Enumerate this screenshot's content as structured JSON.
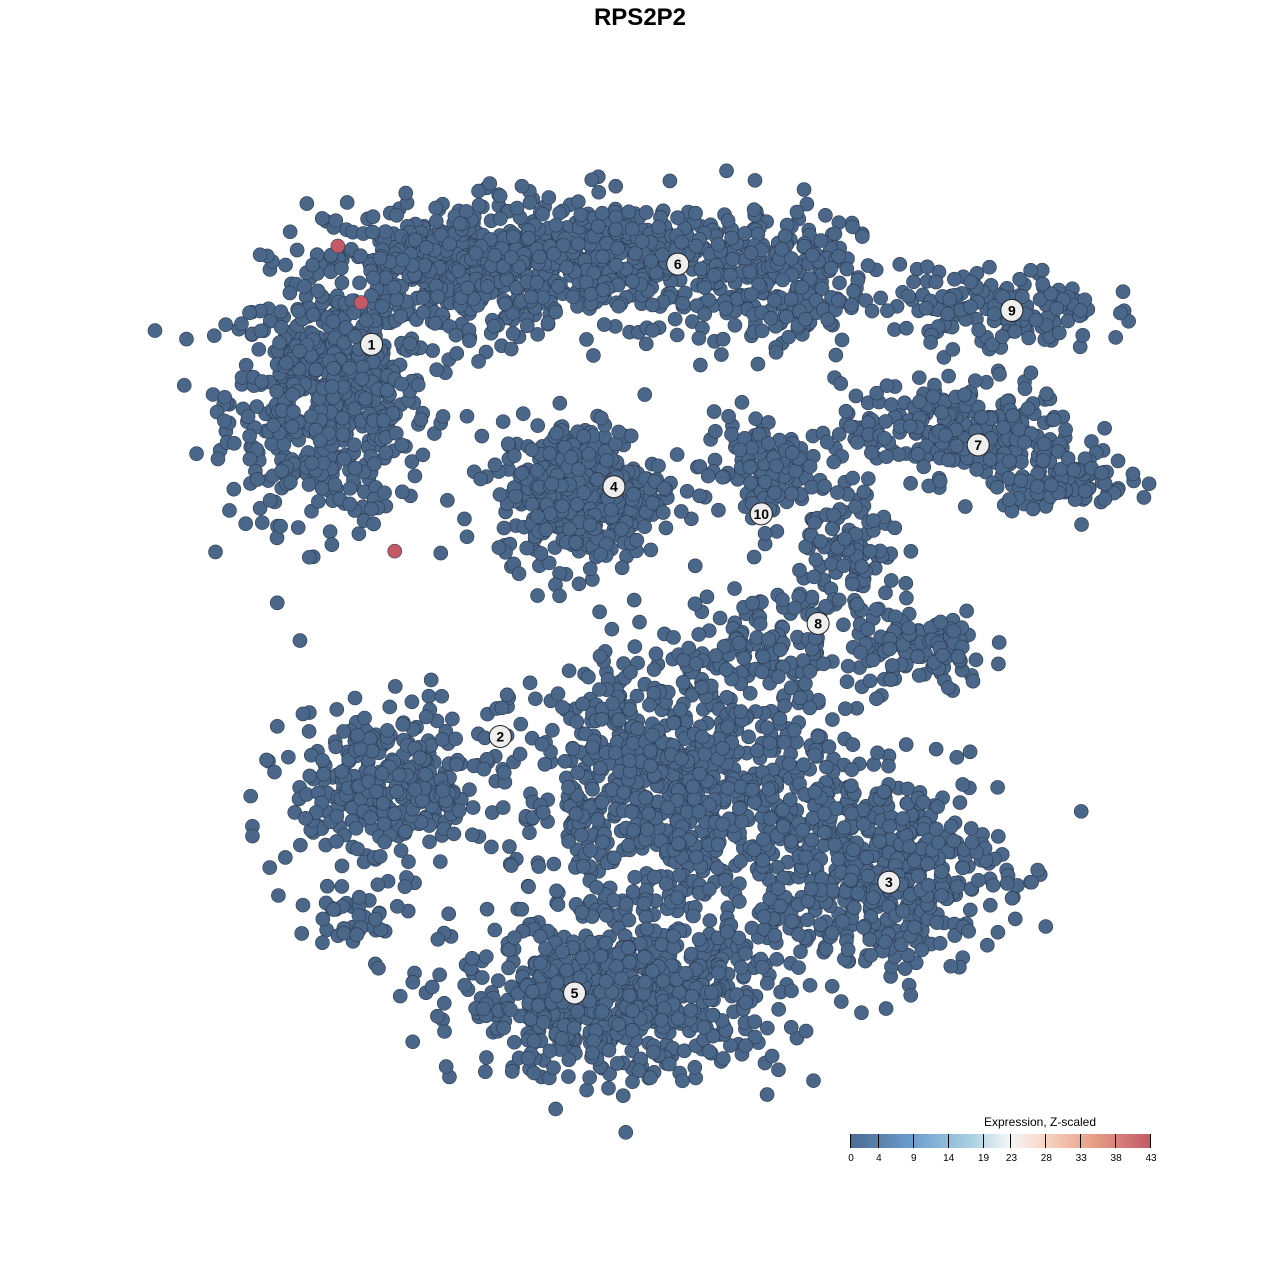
{
  "chart_data": {
    "type": "scatter",
    "title": "RPS2P2",
    "xlabel": "",
    "ylabel": "",
    "xlim": [
      -40,
      40
    ],
    "ylim": [
      -40,
      40
    ],
    "grid": false,
    "point_color_default": "#4a6689",
    "legend": {
      "title": "Expression, Z-scaled",
      "placement": "bottom-right",
      "ticks": [
        "0",
        "4",
        "9",
        "14",
        "19",
        "23",
        "28",
        "33",
        "38",
        "43"
      ],
      "colors": [
        "#4a6a93",
        "#6a9ccb",
        "#a8cfe3",
        "#f3f6f8",
        "#f9dccd",
        "#e9a28a",
        "#c35a66"
      ]
    },
    "cluster_blobs": [
      {
        "cluster": "1",
        "cx": -29,
        "cy": 21,
        "sx": 4.3,
        "sy": 5.3,
        "n": 600
      },
      {
        "cluster": "1",
        "cx": -18.7,
        "cy": 32.5,
        "sx": 5.2,
        "sy": 3.1,
        "n": 400
      },
      {
        "cluster": "6",
        "cx": -2.2,
        "cy": 33.4,
        "sx": 8.7,
        "sy": 2.7,
        "n": 500
      },
      {
        "cluster": "6",
        "cx": 10,
        "cy": 30,
        "sx": 3.5,
        "sy": 2.7,
        "n": 150
      },
      {
        "cluster": "4",
        "cx": -7.3,
        "cy": 13,
        "sx": 3.5,
        "sy": 3.1,
        "n": 450
      },
      {
        "cluster": "10",
        "cx": 8.2,
        "cy": 14.8,
        "sx": 2.6,
        "sy": 2.6,
        "n": 120
      },
      {
        "cluster": "7",
        "cx": 25.4,
        "cy": 18.3,
        "sx": 5.2,
        "sy": 2.2,
        "n": 250
      },
      {
        "cluster": "7",
        "cx": 34,
        "cy": 13.9,
        "sx": 3,
        "sy": 1.3,
        "n": 100
      },
      {
        "cluster": "9",
        "cx": 28.9,
        "cy": 29,
        "sx": 4.3,
        "sy": 1.8,
        "n": 150
      },
      {
        "cluster": "8",
        "cx": 16,
        "cy": 6.8,
        "sx": 2.2,
        "sy": 3.5,
        "n": 120
      },
      {
        "cluster": "8",
        "cx": 22,
        "cy": -1.2,
        "sx": 3,
        "sy": 1.8,
        "n": 120
      },
      {
        "cluster": "8",
        "cx": 8.2,
        "cy": -0.3,
        "sx": 4.3,
        "sy": 1.8,
        "n": 100
      },
      {
        "cluster": "2",
        "cx": -23.7,
        "cy": -13.5,
        "sx": 4.3,
        "sy": 3.5,
        "n": 350
      },
      {
        "cluster": "5",
        "cx": 1.3,
        "cy": -13.5,
        "sx": 7,
        "sy": 6,
        "n": 900
      },
      {
        "cluster": "5",
        "cx": -3.9,
        "cy": -32,
        "sx": 7,
        "sy": 3.5,
        "n": 700
      },
      {
        "cluster": "3",
        "cx": 18.7,
        "cy": -20.6,
        "sx": 5.2,
        "sy": 4.3,
        "n": 500
      },
      {
        "cluster": "2",
        "cx": -27.4,
        "cy": -25,
        "sx": 2.6,
        "sy": 1.3,
        "n": 40
      }
    ],
    "high_points": [
      {
        "x": -28.2,
        "y": 34.6,
        "value": 43
      },
      {
        "x": -26.2,
        "y": 29.6,
        "value": 43
      },
      {
        "x": -23.3,
        "y": 7.6,
        "value": 43
      }
    ],
    "cluster_labels": [
      {
        "label": "1",
        "x": -25.3,
        "y": 25.9
      },
      {
        "label": "2",
        "x": -14.2,
        "y": -8.8
      },
      {
        "label": "3",
        "x": 19.3,
        "y": -21.7
      },
      {
        "label": "4",
        "x": -4.4,
        "y": 13.3
      },
      {
        "label": "5",
        "x": -7.8,
        "y": -31.5
      },
      {
        "label": "6",
        "x": 1.1,
        "y": 33
      },
      {
        "label": "7",
        "x": 27,
        "y": 17
      },
      {
        "label": "8",
        "x": 13.2,
        "y": 1.2
      },
      {
        "label": "9",
        "x": 29.9,
        "y": 28.9
      },
      {
        "label": "10",
        "x": 8.3,
        "y": 10.9
      }
    ]
  }
}
